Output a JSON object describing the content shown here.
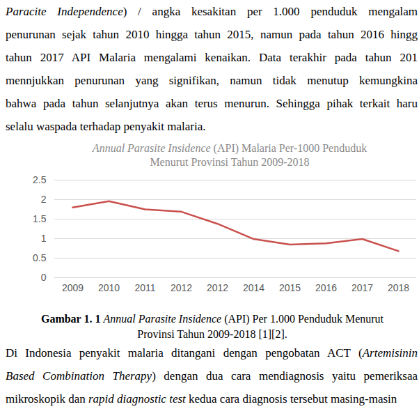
{
  "top_text": [
    [
      {
        "text": "Paracite Independence",
        "italic": true
      },
      {
        "text": ") / angka kesakitan per 1.000 penduduk mengalam",
        "italic": false
      }
    ],
    [
      {
        "text": "penurunan sejak tahun 2010 hingga tahun 2015, namun pada tahun 2016 hingg",
        "italic": false
      }
    ],
    [
      {
        "text": "tahun 2017 API Malaria mengalami kenaikan. Data terakhir pada tahun 201",
        "italic": false
      }
    ],
    [
      {
        "text": "mennjukkan penurunan yang signifikan, namun tidak menutup kemungkina",
        "italic": false
      }
    ],
    [
      {
        "text": "bahwa pada tahun selanjutnya akan terus menurun. Sehingga pihak terkait haru",
        "italic": false
      }
    ],
    [
      {
        "text": "selalu waspada terhadap penyakit malaria.",
        "italic": false
      }
    ]
  ],
  "chart_data": {
    "type": "line",
    "title": [
      [
        {
          "text": "Annual Parasite Insidence",
          "italic": true
        },
        {
          "text": " (API) Malaria Per-1000 Penduduk",
          "italic": false
        }
      ],
      [
        {
          "text": "Menurut Provinsi Tahun 2009-2018",
          "italic": false
        }
      ]
    ],
    "categories": [
      "2009",
      "2010",
      "2011",
      "2012",
      "2012",
      "2014",
      "2015",
      "2016",
      "2017",
      "2018"
    ],
    "values": [
      1.8,
      1.96,
      1.75,
      1.69,
      1.38,
      0.99,
      0.85,
      0.88,
      0.99,
      0.68
    ],
    "color": "#c9504d",
    "ylim": [
      0,
      2.5
    ],
    "yticks": [
      0,
      0.5,
      1,
      1.5,
      2,
      2.5
    ],
    "grid": true
  },
  "caption": [
    [
      {
        "text": "Gambar 1. 1 ",
        "italic": false,
        "bold": true
      },
      {
        "text": "Annual Parasite Insidence",
        "italic": true,
        "bold": false
      },
      {
        "text": " (API) Per 1.000 Penduduk Menurut",
        "italic": false,
        "bold": false
      }
    ],
    [
      {
        "text": "Provinsi Tahun 2009-2018 [1][2].",
        "italic": false,
        "bold": false
      }
    ]
  ],
  "bottom_text": [
    [
      {
        "text": "Di Indonesia penyakit malaria ditangani dengan pengobatan ACT (",
        "italic": false
      },
      {
        "text": "Artemisinin",
        "italic": true
      }
    ],
    [
      {
        "text": "Based Combination Therapy",
        "italic": true
      },
      {
        "text": ") dengan dua cara mendiagnosis yaitu pemeriksaa",
        "italic": false
      }
    ],
    [
      {
        "text": "mikroskopik dan ",
        "italic": false
      },
      {
        "text": "rapid diagnostic test",
        "italic": true
      },
      {
        "text": " kedua cara diagnosis tersebut masing-masin",
        "italic": false
      }
    ]
  ]
}
